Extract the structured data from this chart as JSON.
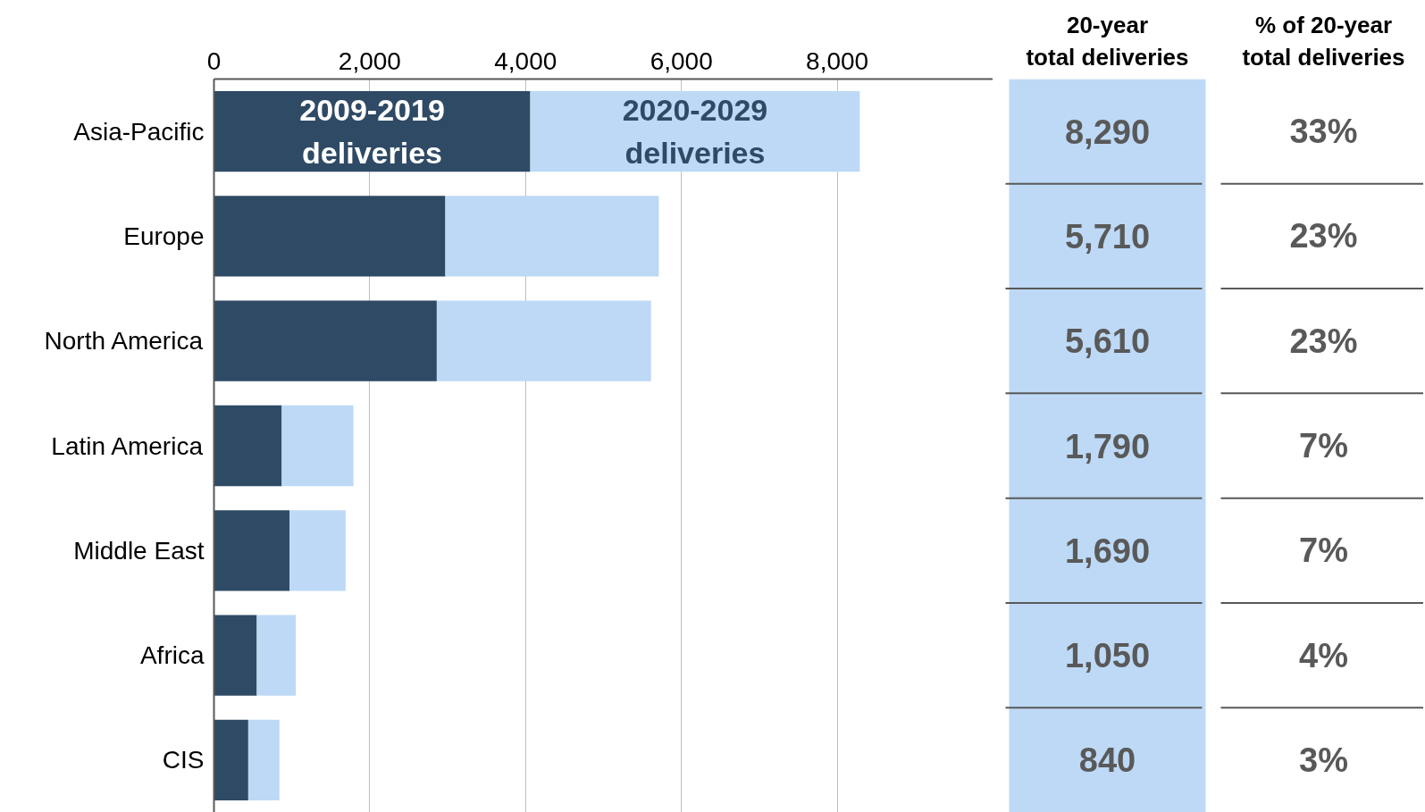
{
  "chart_data": {
    "type": "bar",
    "orientation": "horizontal",
    "stacked": true,
    "categories": [
      "Asia-Pacific",
      "Europe",
      "North America",
      "Latin America",
      "Middle East",
      "Africa",
      "CIS"
    ],
    "series": [
      {
        "name": "2009-2019\ndeliveries",
        "color": "#2f4a65",
        "values": [
          4060,
          2970,
          2860,
          870,
          970,
          550,
          440
        ]
      },
      {
        "name": "2020-2029\ndeliveries",
        "color": "#bdd9f6",
        "values": [
          4230,
          2740,
          2750,
          920,
          720,
          500,
          400
        ]
      }
    ],
    "xlim": [
      0,
      10000
    ],
    "xticks": [
      0,
      {
        "value": 2000,
        "label": "2,000"
      },
      {
        "value": 4000,
        "label": "4,000"
      },
      {
        "value": 6000,
        "label": "6,000"
      },
      {
        "value": 8000,
        "label": "8,000"
      }
    ],
    "grid": "x",
    "legend": false,
    "annotations": [
      "20-year\ntotal deliveries",
      "% of 20-year\ntotal deliveries",
      "8,290",
      "5,710",
      "5,610",
      "1,790",
      "1,690",
      "1,050",
      "840",
      "33%",
      "23%",
      "23%",
      "7%",
      "7%",
      "4%",
      "3%"
    ]
  }
}
